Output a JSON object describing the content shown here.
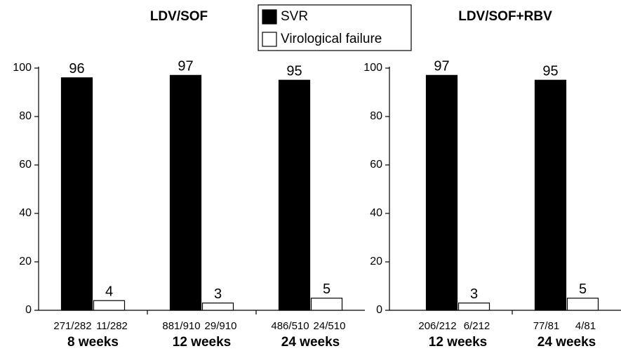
{
  "chart_data": [
    {
      "type": "bar",
      "title": "LDV/SOF",
      "categories": [
        "8 weeks",
        "12 weeks",
        "24 weeks"
      ],
      "series": [
        {
          "name": "SVR",
          "color": "#000000",
          "values": [
            96,
            97,
            95
          ],
          "counts": [
            "271/282",
            "881/910",
            "486/510"
          ]
        },
        {
          "name": "Virological failure",
          "color": "#ffffff",
          "values": [
            4,
            3,
            5
          ],
          "counts": [
            "11/282",
            "29/910",
            "24/510"
          ]
        }
      ],
      "ylim": [
        0,
        100
      ],
      "yticks": [
        0,
        20,
        40,
        60,
        80,
        100
      ]
    },
    {
      "type": "bar",
      "title": "LDV/SOF+RBV",
      "categories": [
        "12 weeks",
        "24 weeks"
      ],
      "series": [
        {
          "name": "SVR",
          "color": "#000000",
          "values": [
            97,
            95
          ],
          "counts": [
            "206/212",
            "77/81"
          ]
        },
        {
          "name": "Virological failure",
          "color": "#ffffff",
          "values": [
            3,
            5
          ],
          "counts": [
            "6/212",
            "4/81"
          ]
        }
      ],
      "ylim": [
        0,
        100
      ],
      "yticks": [
        0,
        20,
        40,
        60,
        80,
        100
      ]
    }
  ]
}
